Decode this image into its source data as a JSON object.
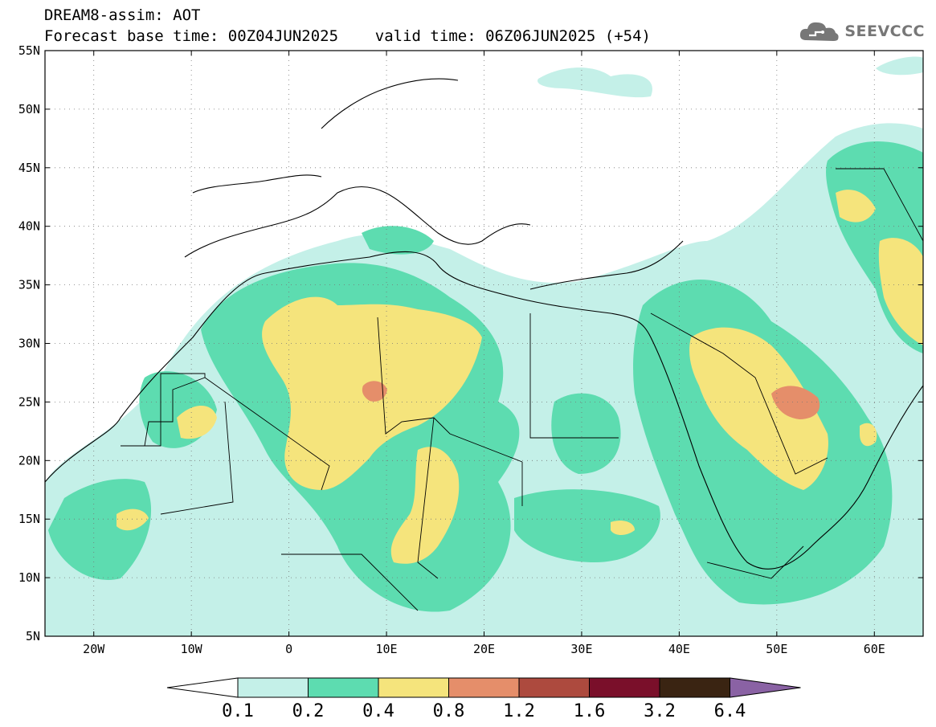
{
  "header": {
    "line1": "DREAM8-assim: AOT",
    "line2": "Forecast base time: 00Z04JUN2025    valid time: 06Z06JUN2025 (+54)"
  },
  "logo": {
    "text": "SEEVCCC",
    "icon": "cloud-logo-icon"
  },
  "map": {
    "variable": "AOT",
    "lat_range": [
      5,
      55
    ],
    "lon_range": [
      -25,
      65
    ],
    "grid": "dotted",
    "lat_labels": [
      "55N",
      "50N",
      "45N",
      "40N",
      "35N",
      "30N",
      "25N",
      "20N",
      "15N",
      "10N",
      "5N"
    ],
    "lon_labels": [
      "20W",
      "10W",
      "0",
      "10E",
      "20E",
      "30E",
      "40E",
      "50E",
      "60E"
    ]
  },
  "colorbar": {
    "colors": [
      "#c4f0e8",
      "#5ddcb0",
      "#f5e47c",
      "#e58e6a",
      "#ad4a3e",
      "#7a0f2a",
      "#3a2412",
      "#8a62a4"
    ],
    "levels": [
      "0.1",
      "0.2",
      "0.4",
      "0.8",
      "1.2",
      "1.6",
      "3.2",
      "6.4"
    ]
  }
}
